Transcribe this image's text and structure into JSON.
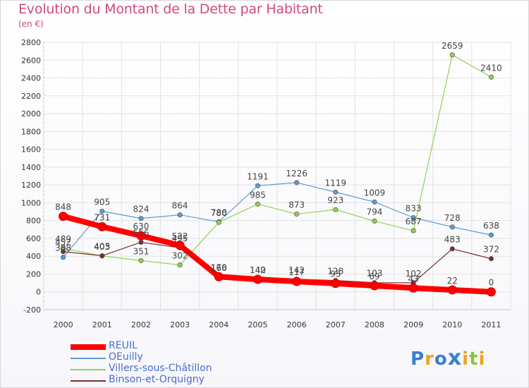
{
  "header": {
    "title": "Evolution du Montant de la Dette par Habitant",
    "subtitle": "(en €)"
  },
  "logo": {
    "text": "Proxiti"
  },
  "chart_data": {
    "type": "line",
    "x": [
      "2000",
      "2001",
      "2002",
      "2003",
      "2004",
      "2005",
      "2006",
      "2007",
      "2008",
      "2009",
      "2010",
      "2011"
    ],
    "ylim": [
      -200,
      2800
    ],
    "yticks": [
      -200,
      0,
      200,
      400,
      600,
      800,
      1000,
      1200,
      1400,
      1600,
      1800,
      2000,
      2200,
      2400,
      2600,
      2800
    ],
    "grid": true,
    "legend_position": "bottom-left",
    "series": [
      {
        "name": "REUIL",
        "color": "#ff0000",
        "values": [
          848,
          731,
          630,
          522,
          170,
          140,
          117,
          95,
          69,
          43,
          22,
          0
        ]
      },
      {
        "name": "OEuilly",
        "color": "#5b9bd5",
        "values": [
          388,
          905,
          824,
          864,
          786,
          1191,
          1226,
          1119,
          1009,
          833,
          728,
          638
        ]
      },
      {
        "name": "Villers-sous-Châtillon",
        "color": "#92d050",
        "values": [
          489,
          403,
          351,
          302,
          780,
          985,
          873,
          923,
          794,
          687,
          2659,
          2410
        ]
      },
      {
        "name": "Binson-et-Orquigny",
        "color": "#7b2e2e",
        "values": [
          452,
          405,
          556,
          495,
          166,
          142,
          142,
          128,
          103,
          102,
          483,
          372
        ]
      }
    ]
  }
}
